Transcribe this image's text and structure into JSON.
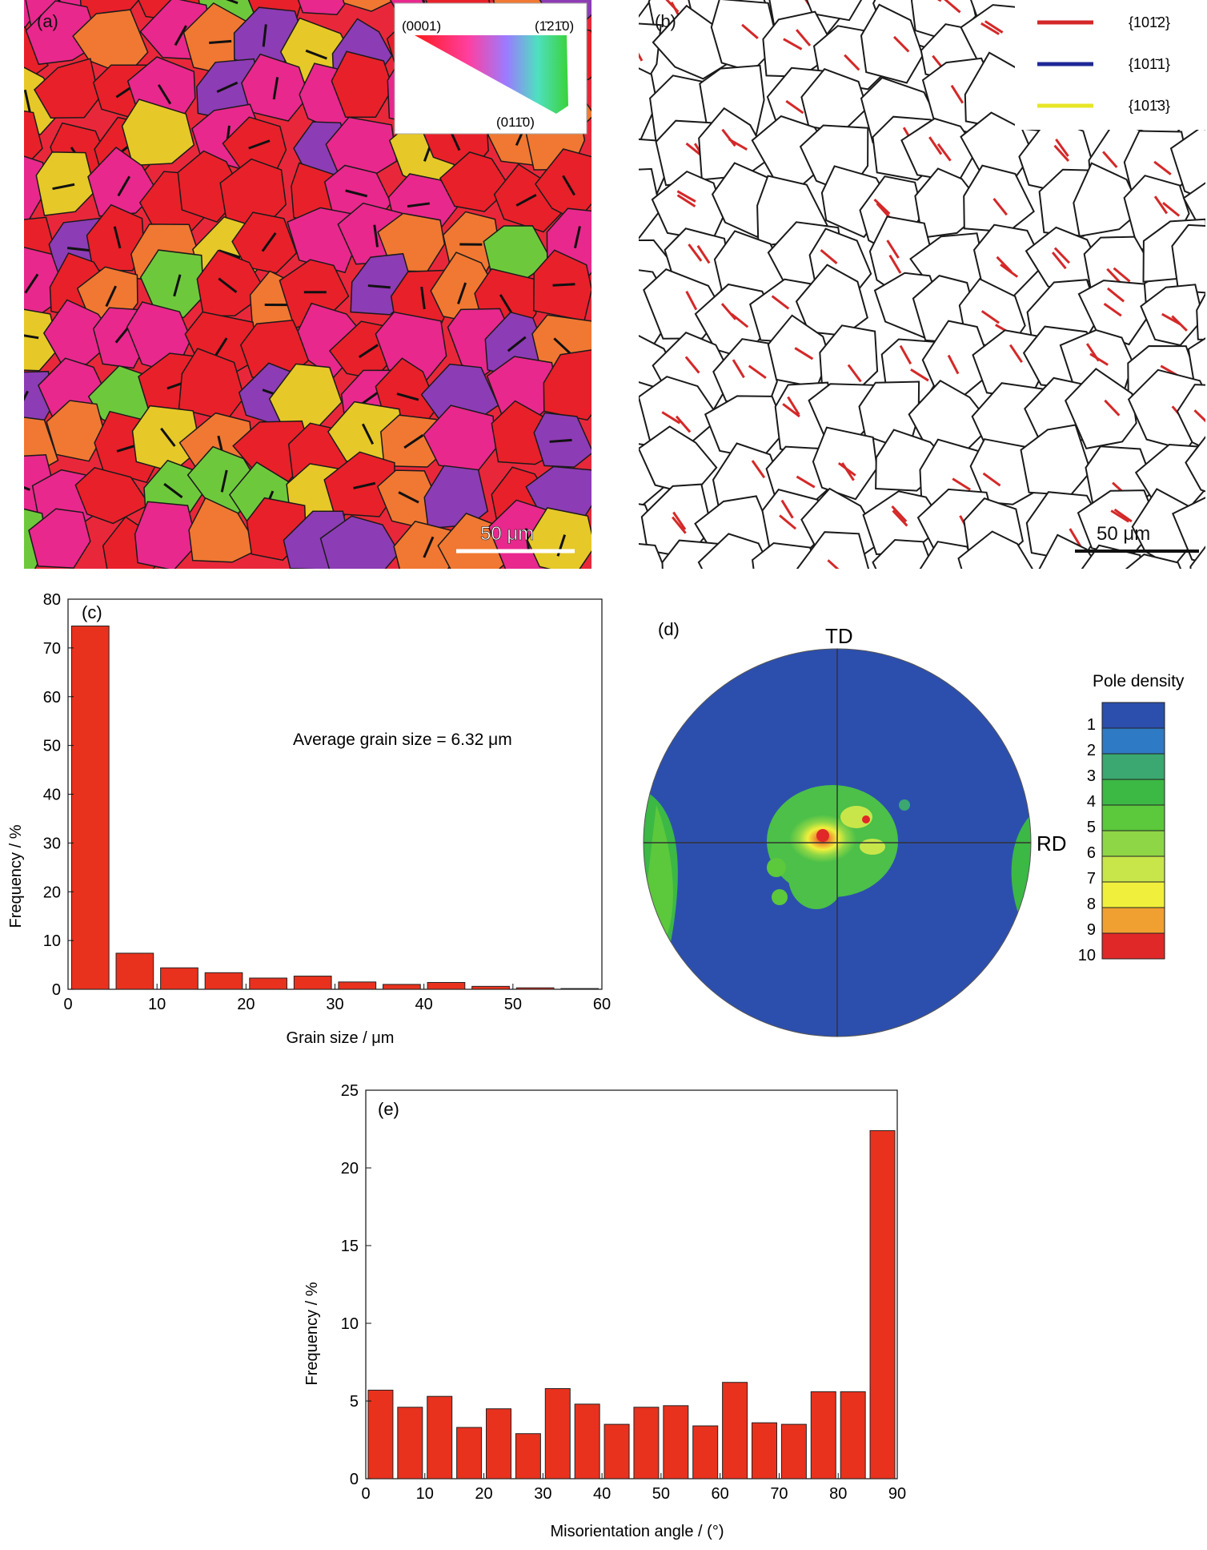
{
  "panel_a": {
    "label": "(a)",
    "ipf_key": {
      "corner_0001": "(0001)",
      "corner_1210": "(1̄21̄0)",
      "corner_0110": "(011̄0)"
    },
    "scalebar": "50 μm",
    "colors": {
      "red": "#e8202a",
      "magenta": "#e8288c",
      "orange": "#f07832",
      "purple": "#8c3cb4",
      "yellow": "#e6c828",
      "green": "#6ec83c"
    }
  },
  "panel_b": {
    "label": "(b)",
    "legend": [
      {
        "label": "{101̄2}",
        "color": "#d42828"
      },
      {
        "label": "{101̄1}",
        "color": "#1e2896"
      },
      {
        "label": "{101̄3}",
        "color": "#e6e628"
      }
    ],
    "scalebar": "50 μm"
  },
  "panel_c": {
    "label": "(c)",
    "annotation": "Average grain size = 6.32 μm",
    "chart_data": {
      "type": "bar",
      "xlabel": "Grain size / μm",
      "ylabel": "Frequency / %",
      "x": [
        2.5,
        7.5,
        12.5,
        17.5,
        22.5,
        27.5,
        32.5,
        37.5,
        42.5,
        47.5,
        52.5,
        57.5
      ],
      "values": [
        74.5,
        7.4,
        4.4,
        3.4,
        2.3,
        2.7,
        1.5,
        1.0,
        1.4,
        0.6,
        0.3,
        0.15
      ],
      "xlim": [
        0,
        60
      ],
      "ylim": [
        0,
        80
      ],
      "xticks": [
        0,
        10,
        20,
        30,
        40,
        50,
        60
      ],
      "yticks": [
        0,
        10,
        20,
        30,
        40,
        50,
        60,
        70,
        80
      ],
      "bar_color": "#e8321e"
    }
  },
  "panel_d": {
    "label": "(d)",
    "td": "TD",
    "rd": "RD",
    "legend_title": "Pole density",
    "levels": [
      "1",
      "2",
      "3",
      "4",
      "5",
      "6",
      "7",
      "8",
      "9",
      "10"
    ],
    "level_colors": [
      "#2c4fae",
      "#2f7ac4",
      "#3aa870",
      "#3cb845",
      "#5cc83c",
      "#8ed646",
      "#c8e64a",
      "#f0f03c",
      "#f0a030",
      "#e02828"
    ]
  },
  "panel_e": {
    "label": "(e)",
    "chart_data": {
      "type": "bar",
      "xlabel": "Misorientation angle / (°)",
      "ylabel": "Frequency / %",
      "x": [
        2.5,
        7.5,
        12.5,
        17.5,
        22.5,
        27.5,
        32.5,
        37.5,
        42.5,
        47.5,
        52.5,
        57.5,
        62.5,
        67.5,
        72.5,
        77.5,
        82.5,
        87.5
      ],
      "values": [
        5.7,
        4.6,
        5.3,
        3.3,
        4.5,
        2.9,
        5.8,
        4.8,
        3.5,
        4.6,
        4.7,
        3.4,
        6.2,
        3.6,
        3.5,
        5.6,
        5.6,
        22.4
      ],
      "xlim": [
        0,
        90
      ],
      "ylim": [
        0,
        25
      ],
      "xticks": [
        0,
        10,
        20,
        30,
        40,
        50,
        60,
        70,
        80,
        90
      ],
      "yticks": [
        0,
        5,
        10,
        15,
        20,
        25
      ],
      "bar_color": "#e8321e"
    }
  }
}
